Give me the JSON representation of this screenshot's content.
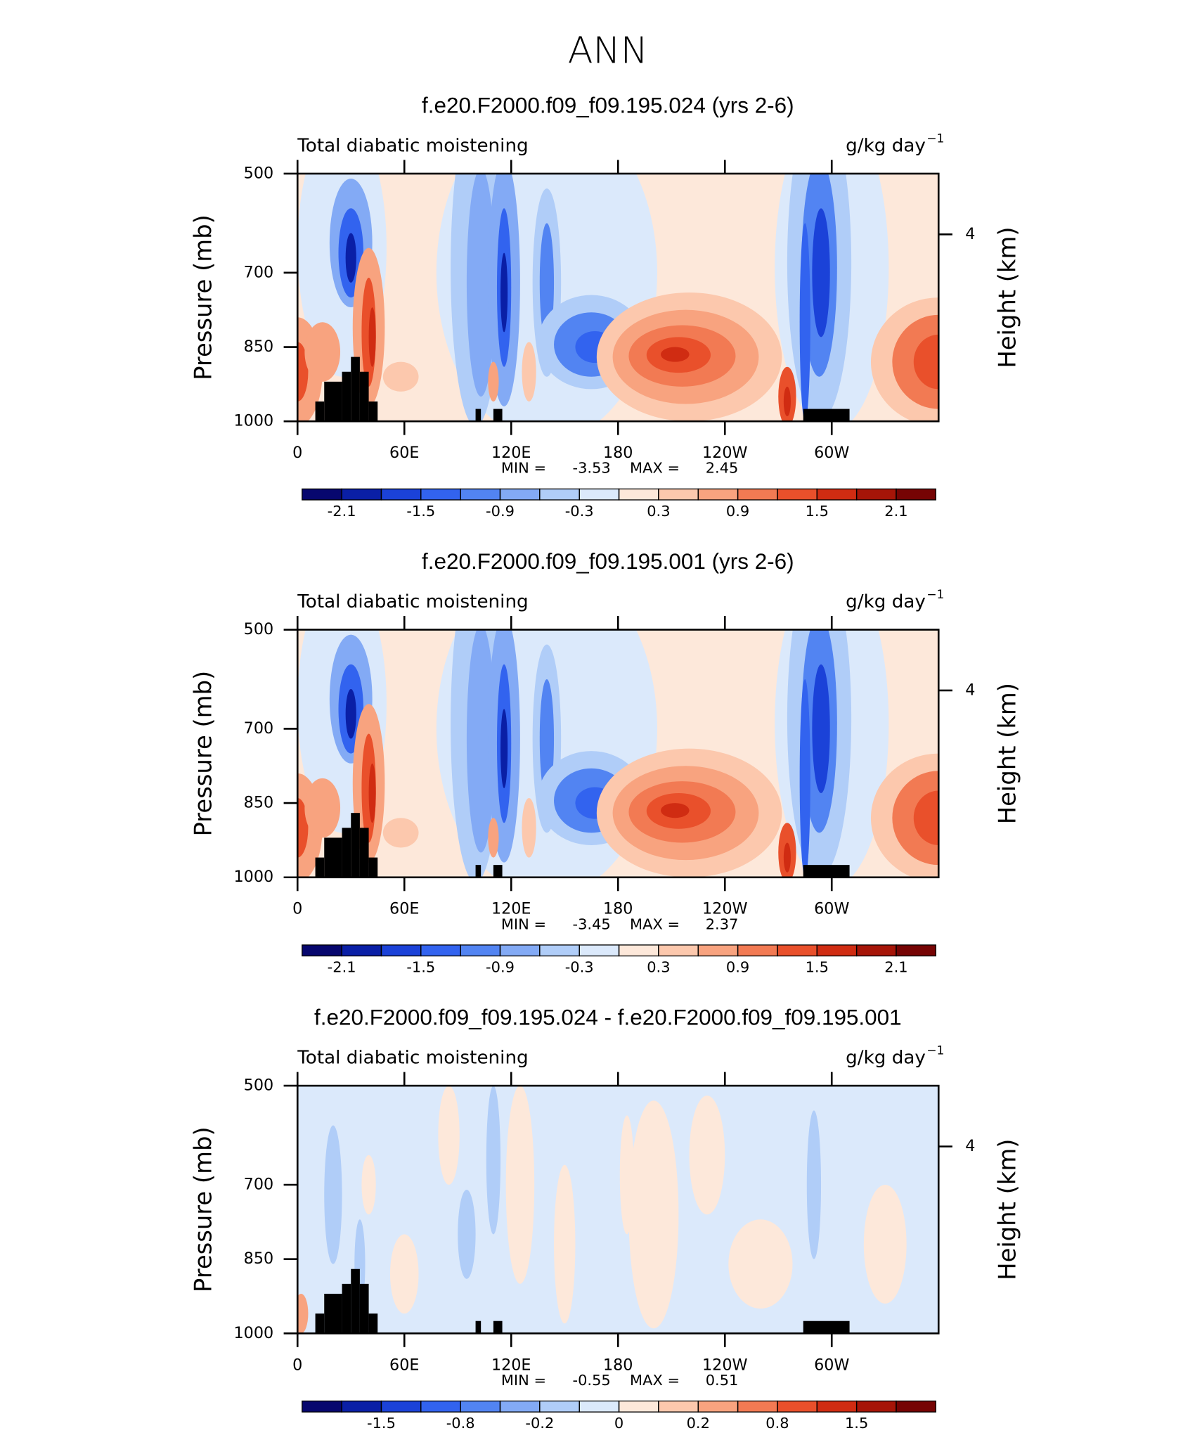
{
  "title": "ANN",
  "chart_data": [
    {
      "type": "contour",
      "title": "f.e20.F2000.f09_f09.195.024 (yrs 2-6)",
      "subtitle": "Total diabatic moistening",
      "units": "g/kg day",
      "units_exponent": "−1",
      "ylabel": "Pressure (mb)",
      "y2label": "Height (km)",
      "xlim": [
        0,
        360
      ],
      "xticks": [
        0,
        {
          "value": 60,
          "label": "60E"
        },
        {
          "value": 120,
          "label": "120E"
        },
        180,
        {
          "value": 240,
          "label": "120W"
        },
        {
          "value": 300,
          "label": "60W"
        }
      ],
      "ylim": [
        500,
        1000
      ],
      "yreverse": true,
      "yticks": [
        500,
        700,
        850,
        1000
      ],
      "y2lim": [
        0,
        5.3
      ],
      "y2ticks": [
        4
      ],
      "min_label": "MIN =",
      "min": -3.53,
      "max_label": "MAX =",
      "max": 2.45,
      "colorbar_levels": [
        -2.1,
        -1.8,
        -1.5,
        -1.2,
        -0.9,
        -0.6,
        -0.3,
        0,
        0.3,
        0.6,
        0.9,
        1.2,
        1.5,
        1.8,
        2.1
      ],
      "colorbar_ticks": [
        -2.1,
        -1.5,
        -0.9,
        -0.3,
        0.3,
        0.9,
        1.5,
        2.1
      ],
      "colors": [
        "#07076e",
        "#0a1fa6",
        "#1b42d8",
        "#3263ef",
        "#5284f2",
        "#83aaf5",
        "#b0cdf8",
        "#dbe9fb",
        "#fde8da",
        "#fcc8ad",
        "#f8a37f",
        "#f27a53",
        "#e9502b",
        "#d02c12",
        "#a61508",
        "#760404"
      ]
    },
    {
      "type": "contour",
      "title": "f.e20.F2000.f09_f09.195.001 (yrs 2-6)",
      "subtitle": "Total diabatic moistening",
      "units": "g/kg day",
      "units_exponent": "−1",
      "ylabel": "Pressure (mb)",
      "y2label": "Height (km)",
      "xlim": [
        0,
        360
      ],
      "xticks": [
        0,
        {
          "value": 60,
          "label": "60E"
        },
        {
          "value": 120,
          "label": "120E"
        },
        180,
        {
          "value": 240,
          "label": "120W"
        },
        {
          "value": 300,
          "label": "60W"
        }
      ],
      "ylim": [
        500,
        1000
      ],
      "yreverse": true,
      "yticks": [
        500,
        700,
        850,
        1000
      ],
      "y2lim": [
        0,
        5.3
      ],
      "y2ticks": [
        4
      ],
      "min_label": "MIN =",
      "min": -3.45,
      "max_label": "MAX =",
      "max": 2.37,
      "colorbar_levels": [
        -2.1,
        -1.8,
        -1.5,
        -1.2,
        -0.9,
        -0.6,
        -0.3,
        0,
        0.3,
        0.6,
        0.9,
        1.2,
        1.5,
        1.8,
        2.1
      ],
      "colorbar_ticks": [
        -2.1,
        -1.5,
        -0.9,
        -0.3,
        0.3,
        0.9,
        1.5,
        2.1
      ],
      "colors": [
        "#07076e",
        "#0a1fa6",
        "#1b42d8",
        "#3263ef",
        "#5284f2",
        "#83aaf5",
        "#b0cdf8",
        "#dbe9fb",
        "#fde8da",
        "#fcc8ad",
        "#f8a37f",
        "#f27a53",
        "#e9502b",
        "#d02c12",
        "#a61508",
        "#760404"
      ]
    },
    {
      "type": "contour",
      "title": "f.e20.F2000.f09_f09.195.024 - f.e20.F2000.f09_f09.195.001",
      "subtitle": "Total diabatic moistening",
      "units": "g/kg day",
      "units_exponent": "−1",
      "ylabel": "Pressure (mb)",
      "y2label": "Height (km)",
      "xlim": [
        0,
        360
      ],
      "xticks": [
        0,
        {
          "value": 60,
          "label": "60E"
        },
        {
          "value": 120,
          "label": "120E"
        },
        180,
        {
          "value": 240,
          "label": "120W"
        },
        {
          "value": 300,
          "label": "60W"
        }
      ],
      "ylim": [
        500,
        1000
      ],
      "yreverse": true,
      "yticks": [
        500,
        700,
        850,
        1000
      ],
      "y2lim": [
        0,
        5.3
      ],
      "y2ticks": [
        4
      ],
      "min_label": "MIN =",
      "min": -0.55,
      "max_label": "MAX =",
      "max": 0.51,
      "colorbar_levels": [
        -1.8,
        -1.5,
        -1.2,
        -0.8,
        -0.4,
        -0.2,
        -0.1,
        0,
        0.1,
        0.2,
        0.4,
        0.8,
        1.2,
        1.5,
        1.8
      ],
      "colorbar_ticks": [
        -1.5,
        -0.8,
        -0.2,
        0,
        0.2,
        0.8,
        1.5
      ],
      "colors": [
        "#07076e",
        "#0a1fa6",
        "#1b42d8",
        "#3263ef",
        "#5284f2",
        "#83aaf5",
        "#b0cdf8",
        "#dbe9fb",
        "#fde8da",
        "#fcc8ad",
        "#f8a37f",
        "#f27a53",
        "#e9502b",
        "#d02c12",
        "#a61508",
        "#760404"
      ]
    }
  ]
}
